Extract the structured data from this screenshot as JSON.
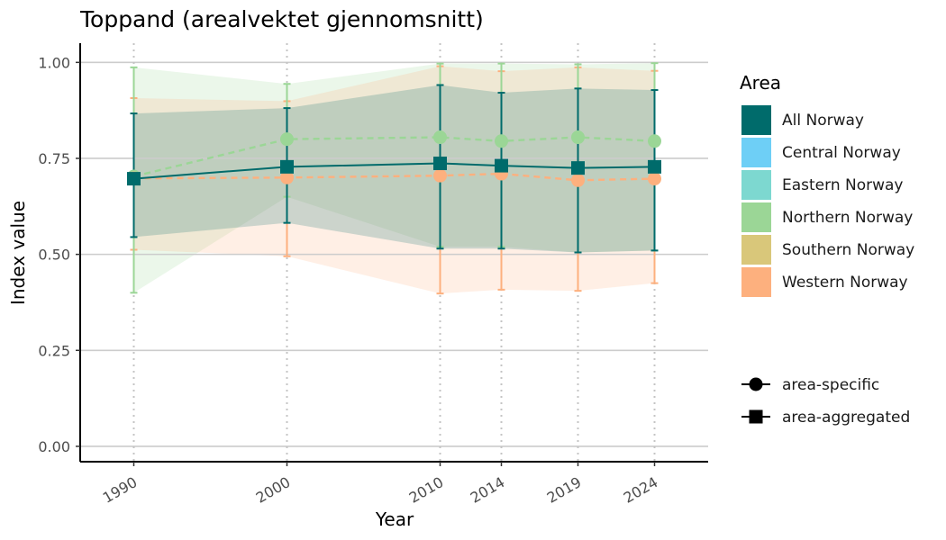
{
  "chart_data": {
    "type": "line",
    "title": "Toppand (arealvektet gjennomsnitt)",
    "xlabel": "Year",
    "ylabel": "Index value",
    "x": [
      1990,
      2000,
      2010,
      2014,
      2019,
      2024
    ],
    "x_tick_labels": [
      "1990",
      "2000",
      "2010",
      "2014",
      "2019",
      "2024"
    ],
    "ylim": [
      -0.04,
      1.05
    ],
    "y_ticks": [
      0.0,
      0.25,
      0.5,
      0.75,
      1.0
    ],
    "y_tick_labels": [
      "0.00",
      "0.25",
      "0.50",
      "0.75",
      "1.00"
    ],
    "grid": "horizontal major + dotted vertical at data years",
    "legend_position": "right",
    "legend": {
      "area_title": "Area",
      "areas": [
        {
          "name": "All Norway",
          "color": "#006b6b"
        },
        {
          "name": "Central Norway",
          "color": "#6ecff6"
        },
        {
          "name": "Eastern Norway",
          "color": "#7dd8d0"
        },
        {
          "name": "Northern Norway",
          "color": "#9bd696"
        },
        {
          "name": "Southern Norway",
          "color": "#d9c77a"
        },
        {
          "name": "Western Norway",
          "color": "#fdb07e"
        }
      ],
      "shapes": [
        {
          "name": "area-specific",
          "shape": "circle"
        },
        {
          "name": "area-aggregated",
          "shape": "square"
        }
      ]
    },
    "series": [
      {
        "name": "All Norway",
        "color": "#006b6b",
        "marker": "square",
        "linestyle": "solid",
        "values": [
          0.697,
          0.728,
          0.737,
          0.731,
          0.725,
          0.728
        ],
        "lower": [
          0.545,
          0.582,
          0.515,
          0.515,
          0.505,
          0.51
        ],
        "upper": [
          0.867,
          0.881,
          0.941,
          0.921,
          0.932,
          0.928
        ]
      },
      {
        "name": "Northern Norway",
        "color": "#9bd696",
        "marker": "circle",
        "linestyle": "dashed",
        "values": [
          0.703,
          0.8,
          0.805,
          0.795,
          0.805,
          0.795
        ],
        "lower": [
          0.4,
          0.65,
          0.52,
          0.52,
          0.505,
          0.51
        ],
        "upper": [
          0.987,
          0.944,
          0.997,
          0.997,
          0.995,
          0.998
        ]
      },
      {
        "name": "Western Norway",
        "color": "#fdb07e",
        "marker": "circle",
        "linestyle": "dashed",
        "values": [
          0.698,
          0.7,
          0.705,
          0.71,
          0.693,
          0.697
        ],
        "lower": [
          0.512,
          0.495,
          0.398,
          0.408,
          0.405,
          0.425
        ],
        "upper": [
          0.907,
          0.899,
          0.99,
          0.977,
          0.987,
          0.978
        ]
      }
    ]
  }
}
